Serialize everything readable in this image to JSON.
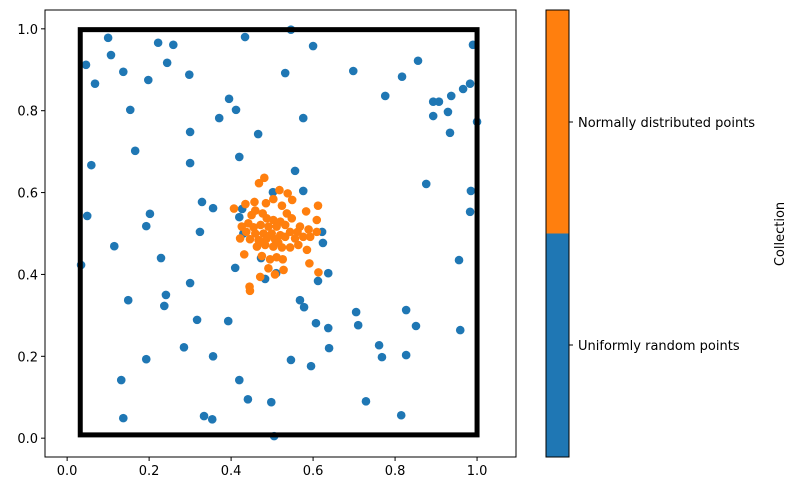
{
  "chart_data": {
    "type": "scatter",
    "xlim": [
      -0.054,
      1.095
    ],
    "ylim": [
      -0.046,
      1.046
    ],
    "xticks": [
      "0.0",
      "0.2",
      "0.4",
      "0.6",
      "0.8",
      "1.0"
    ],
    "yticks": [
      "0.0",
      "0.2",
      "0.4",
      "0.6",
      "0.8",
      "1.0"
    ],
    "xtick_values": [
      0,
      0.2,
      0.4,
      0.6,
      0.8,
      1.0
    ],
    "ytick_values": [
      0,
      0.2,
      0.4,
      0.6,
      0.8,
      1.0
    ],
    "grid": false,
    "rectangle": {
      "x0": 0.032,
      "y0": 0.008,
      "x1": 1.0,
      "y1": 0.998,
      "color": "#000000"
    },
    "colorbar": {
      "label": "Collection",
      "categories": [
        "Uniformly random points",
        "Normally distributed points"
      ],
      "colors": [
        "#1f77b4",
        "#ff7f0e"
      ]
    },
    "series": [
      {
        "name": "Uniformly random points",
        "color": "#1f77b4",
        "points": [
          [
            0.1,
            0.978
          ],
          [
            0.222,
            0.966
          ],
          [
            0.259,
            0.961
          ],
          [
            0.434,
            0.98
          ],
          [
            0.107,
            0.936
          ],
          [
            0.046,
            0.912
          ],
          [
            0.244,
            0.917
          ],
          [
            0.137,
            0.895
          ],
          [
            0.198,
            0.875
          ],
          [
            0.298,
            0.888
          ],
          [
            0.068,
            0.866
          ],
          [
            0.395,
            0.829
          ],
          [
            0.412,
            0.802
          ],
          [
            0.371,
            0.782
          ],
          [
            0.154,
            0.802
          ],
          [
            0.3,
            0.748
          ],
          [
            0.466,
            0.743
          ],
          [
            0.166,
            0.702
          ],
          [
            0.059,
            0.667
          ],
          [
            0.3,
            0.672
          ],
          [
            0.42,
            0.687
          ],
          [
            0.502,
            0.601
          ],
          [
            0.329,
            0.577
          ],
          [
            0.356,
            0.562
          ],
          [
            0.427,
            0.56
          ],
          [
            0.049,
            0.543
          ],
          [
            0.202,
            0.548
          ],
          [
            0.193,
            0.518
          ],
          [
            0.546,
            0.998
          ],
          [
            0.6,
            0.958
          ],
          [
            0.99,
            0.961
          ],
          [
            0.532,
            0.892
          ],
          [
            0.698,
            0.897
          ],
          [
            0.856,
            0.922
          ],
          [
            0.817,
            0.883
          ],
          [
            0.776,
            0.836
          ],
          [
            0.983,
            0.866
          ],
          [
            0.966,
            0.853
          ],
          [
            0.937,
            0.836
          ],
          [
            0.893,
            0.822
          ],
          [
            0.907,
            0.822
          ],
          [
            0.893,
            0.787
          ],
          [
            0.929,
            0.797
          ],
          [
            1.0,
            0.773
          ],
          [
            0.934,
            0.746
          ],
          [
            0.576,
            0.782
          ],
          [
            0.556,
            0.653
          ],
          [
            0.876,
            0.621
          ],
          [
            0.985,
            0.604
          ],
          [
            0.983,
            0.553
          ],
          [
            0.576,
            0.604
          ],
          [
            0.324,
            0.504
          ],
          [
            0.115,
            0.469
          ],
          [
            0.229,
            0.44
          ],
          [
            0.034,
            0.423
          ],
          [
            0.41,
            0.416
          ],
          [
            0.483,
            0.389
          ],
          [
            0.3,
            0.379
          ],
          [
            0.241,
            0.35
          ],
          [
            0.149,
            0.337
          ],
          [
            0.237,
            0.323
          ],
          [
            0.317,
            0.289
          ],
          [
            0.393,
            0.286
          ],
          [
            0.285,
            0.222
          ],
          [
            0.356,
            0.2
          ],
          [
            0.193,
            0.193
          ],
          [
            0.132,
            0.142
          ],
          [
            0.42,
            0.142
          ],
          [
            0.441,
            0.095
          ],
          [
            0.498,
            0.088
          ],
          [
            0.137,
            0.049
          ],
          [
            0.334,
            0.054
          ],
          [
            0.354,
            0.046
          ],
          [
            0.505,
            0.005
          ],
          [
            0.622,
            0.504
          ],
          [
            0.624,
            0.477
          ],
          [
            0.956,
            0.435
          ],
          [
            0.637,
            0.403
          ],
          [
            0.612,
            0.384
          ],
          [
            0.568,
            0.337
          ],
          [
            0.578,
            0.32
          ],
          [
            0.705,
            0.308
          ],
          [
            0.827,
            0.313
          ],
          [
            0.607,
            0.281
          ],
          [
            0.637,
            0.269
          ],
          [
            0.71,
            0.276
          ],
          [
            0.851,
            0.274
          ],
          [
            0.959,
            0.264
          ],
          [
            0.639,
            0.22
          ],
          [
            0.761,
            0.227
          ],
          [
            0.768,
            0.198
          ],
          [
            0.827,
            0.203
          ],
          [
            0.546,
            0.191
          ],
          [
            0.595,
            0.176
          ],
          [
            0.729,
            0.09
          ],
          [
            0.815,
            0.056
          ],
          [
            0.51,
            0.403
          ],
          [
            0.473,
            0.44
          ],
          [
            0.42,
            0.54
          ],
          [
            0.43,
            0.5
          ]
        ]
      },
      {
        "name": "Normally distributed points",
        "color": "#ff7f0e",
        "points": [
          [
            0.481,
            0.636
          ],
          [
            0.468,
            0.623
          ],
          [
            0.518,
            0.606
          ],
          [
            0.538,
            0.598
          ],
          [
            0.503,
            0.584
          ],
          [
            0.549,
            0.582
          ],
          [
            0.485,
            0.574
          ],
          [
            0.457,
            0.577
          ],
          [
            0.435,
            0.572
          ],
          [
            0.407,
            0.561
          ],
          [
            0.524,
            0.568
          ],
          [
            0.612,
            0.568
          ],
          [
            0.459,
            0.556
          ],
          [
            0.45,
            0.545
          ],
          [
            0.477,
            0.549
          ],
          [
            0.536,
            0.549
          ],
          [
            0.548,
            0.537
          ],
          [
            0.583,
            0.554
          ],
          [
            0.609,
            0.533
          ],
          [
            0.487,
            0.537
          ],
          [
            0.503,
            0.533
          ],
          [
            0.52,
            0.529
          ],
          [
            0.442,
            0.525
          ],
          [
            0.426,
            0.517
          ],
          [
            0.472,
            0.521
          ],
          [
            0.491,
            0.517
          ],
          [
            0.511,
            0.517
          ],
          [
            0.532,
            0.521
          ],
          [
            0.568,
            0.517
          ],
          [
            0.589,
            0.51
          ],
          [
            0.609,
            0.504
          ],
          [
            0.437,
            0.504
          ],
          [
            0.459,
            0.5
          ],
          [
            0.479,
            0.5
          ],
          [
            0.499,
            0.5
          ],
          [
            0.52,
            0.496
          ],
          [
            0.544,
            0.504
          ],
          [
            0.562,
            0.504
          ],
          [
            0.422,
            0.488
          ],
          [
            0.446,
            0.486
          ],
          [
            0.467,
            0.484
          ],
          [
            0.487,
            0.488
          ],
          [
            0.507,
            0.486
          ],
          [
            0.532,
            0.492
          ],
          [
            0.556,
            0.488
          ],
          [
            0.576,
            0.492
          ],
          [
            0.593,
            0.492
          ],
          [
            0.463,
            0.468
          ],
          [
            0.483,
            0.472
          ],
          [
            0.503,
            0.468
          ],
          [
            0.524,
            0.466
          ],
          [
            0.544,
            0.466
          ],
          [
            0.564,
            0.472
          ],
          [
            0.585,
            0.46
          ],
          [
            0.432,
            0.449
          ],
          [
            0.475,
            0.445
          ],
          [
            0.495,
            0.437
          ],
          [
            0.511,
            0.442
          ],
          [
            0.526,
            0.437
          ],
          [
            0.491,
            0.415
          ],
          [
            0.528,
            0.411
          ],
          [
            0.591,
            0.427
          ],
          [
            0.613,
            0.405
          ],
          [
            0.471,
            0.394
          ],
          [
            0.507,
            0.4
          ],
          [
            0.445,
            0.37
          ],
          [
            0.446,
            0.36
          ],
          [
            0.47,
            0.48
          ],
          [
            0.515,
            0.478
          ],
          [
            0.455,
            0.515
          ]
        ]
      }
    ]
  }
}
